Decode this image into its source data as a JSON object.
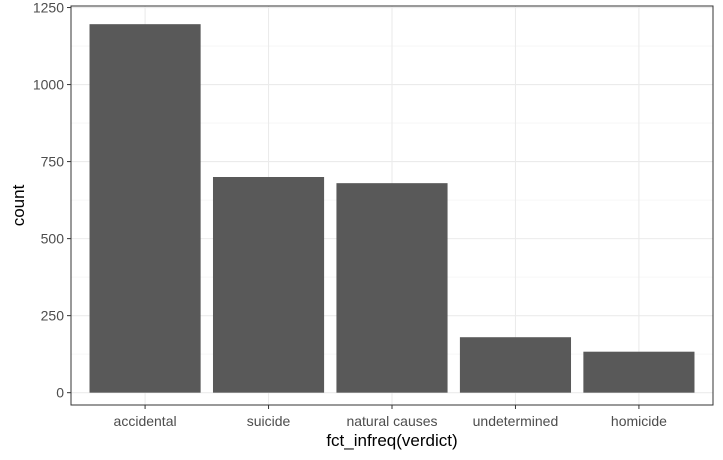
{
  "chart_data": {
    "type": "bar",
    "categories": [
      "accidental",
      "suicide",
      "natural causes",
      "undetermined",
      "homicide"
    ],
    "values": [
      1196,
      700,
      680,
      180,
      133
    ],
    "xlabel": "fct_infreq(verdict)",
    "ylabel": "count",
    "ylim": [
      -40,
      1255
    ],
    "yticks": [
      0,
      250,
      500,
      750,
      1000,
      1250
    ],
    "ytick_labels": [
      "0",
      "250",
      "500",
      "750",
      "1000",
      "1250"
    ],
    "grid": true,
    "theme": "bw",
    "colors": {
      "bar": "#595959",
      "grid_major": "#ebebeb",
      "grid_minor": "#f4f4f4",
      "panel_border": "#333333",
      "tick_text": "#4d4d4d",
      "axis_title": "#000000"
    }
  }
}
